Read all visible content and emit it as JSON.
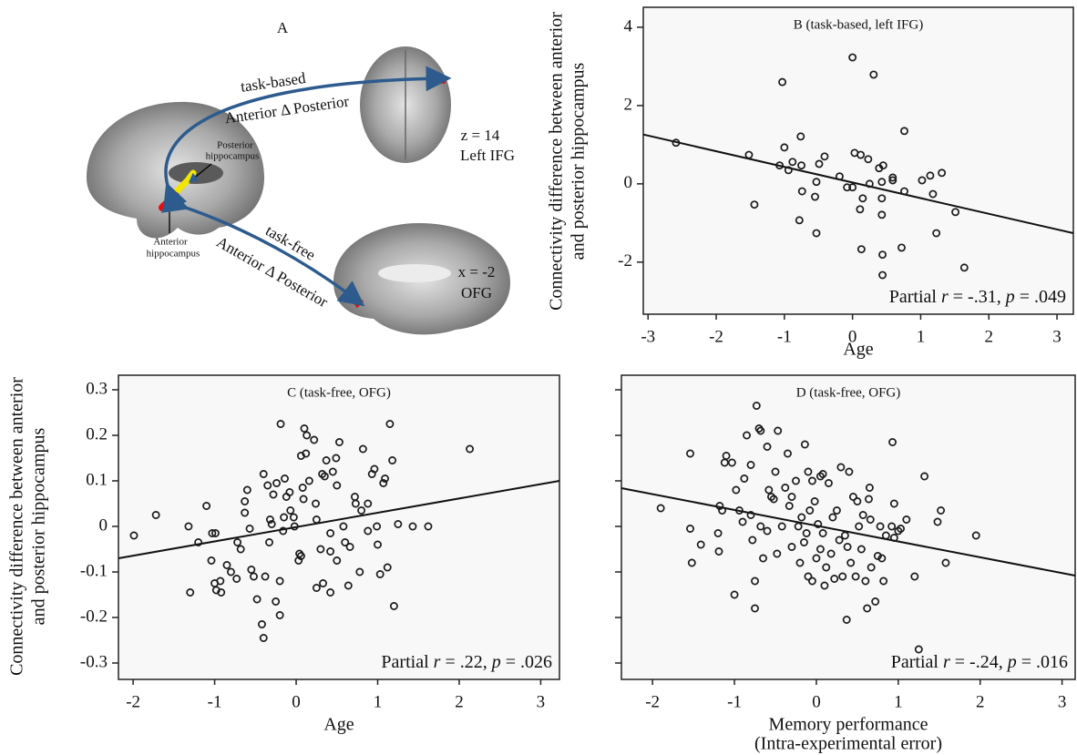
{
  "diagram": {
    "label": "A",
    "task_based": "task-based",
    "task_based_contrast": "Anterior Δ Posterior",
    "ifg_coord": "z = 14",
    "ifg_name": "Left IFG",
    "posterior_label": [
      "Posterior",
      "hippocampus"
    ],
    "anterior_label": [
      "Anterior",
      "hippocampus"
    ],
    "task_free": "task-free",
    "task_free_contrast": "Anterior Δ Posterior",
    "ofg_coord": "x = -2",
    "ofg_name": "OFG"
  },
  "chart_data": [
    {
      "type": "scatter",
      "title": "B (task-based, left IFG)",
      "xlabel": [
        "Age"
      ],
      "ylabel": [
        "Connectivity difference between anterior",
        "and posterior hippocampus"
      ],
      "color": "#1a1a1a",
      "x": [
        -2.59,
        -1.52,
        -1.44,
        -1.03,
        -1.0,
        -1.07,
        -0.94,
        -0.88,
        -0.76,
        -0.75,
        -0.74,
        -0.78,
        -0.53,
        -0.49,
        -0.55,
        -0.53,
        -0.41,
        -0.19,
        -0.08,
        0.0,
        0.0,
        0.31,
        0.03,
        0.12,
        0.23,
        0.15,
        0.11,
        0.13,
        0.39,
        0.25,
        0.43,
        0.43,
        0.43,
        0.44,
        0.44,
        0.45,
        0.59,
        0.59,
        0.72,
        0.76,
        0.76,
        1.02,
        1.14,
        1.18,
        1.31,
        1.23,
        1.51,
        1.64
      ],
      "values": [
        1.05,
        0.74,
        -0.53,
        2.6,
        0.93,
        0.47,
        0.35,
        0.56,
        1.21,
        0.47,
        -0.19,
        -0.93,
        0.05,
        0.51,
        -0.33,
        -1.26,
        0.7,
        0.19,
        -0.09,
        -0.09,
        3.23,
        2.79,
        0.79,
        0.74,
        0.63,
        -0.37,
        -0.65,
        -1.67,
        0.4,
        0.0,
        0.05,
        -0.37,
        -0.79,
        -1.81,
        -2.33,
        0.47,
        0.16,
        0.09,
        -1.63,
        1.35,
        -0.19,
        0.09,
        0.21,
        -0.26,
        0.28,
        -1.26,
        -0.72,
        -2.14
      ],
      "fit_line": {
        "x": [
          -3.07,
          3.24
        ],
        "y": [
          1.26,
          -1.26
        ]
      },
      "xlim": [
        -3.07,
        3.24
      ],
      "ylim": [
        -3.33,
        4.51
      ],
      "xticks": [
        -3,
        -2,
        -1,
        0,
        1,
        2,
        3
      ],
      "yticks": [
        -2,
        0,
        2,
        4
      ],
      "annotation": [
        {
          "text": "Partial "
        },
        {
          "text": "r",
          "italic": true
        },
        {
          "text": " = -.31, "
        },
        {
          "text": "p",
          "italic": true
        },
        {
          "text": " = .049"
        }
      ]
    },
    {
      "type": "scatter",
      "title": "C (task-free, OFG)",
      "xlabel": [
        "Age"
      ],
      "ylabel": [
        "Connectivity difference between anterior",
        "and posterior hippocampus"
      ],
      "color": "#1a1a1a",
      "x": [
        -1.99,
        -1.72,
        -1.32,
        -1.3,
        -1.2,
        -1.1,
        -1.03,
        -0.99,
        -1.04,
        -1.0,
        -0.98,
        -0.93,
        -0.92,
        -0.85,
        -0.8,
        -0.73,
        -0.72,
        -0.68,
        -0.63,
        -0.63,
        -0.6,
        -0.57,
        -0.55,
        -0.52,
        -0.48,
        -0.42,
        -0.4,
        -0.38,
        -0.4,
        -0.35,
        -0.33,
        -0.32,
        -0.3,
        -0.28,
        -0.24,
        -0.25,
        -0.2,
        -0.2,
        -0.16,
        -0.15,
        -0.19,
        -0.14,
        -0.12,
        -0.08,
        -0.07,
        -0.02,
        -0.03,
        0.03,
        0.04,
        0.06,
        0.06,
        0.08,
        0.09,
        0.12,
        0.1,
        0.13,
        0.16,
        0.22,
        0.24,
        0.25,
        0.25,
        0.3,
        0.32,
        0.33,
        0.35,
        0.37,
        0.42,
        0.42,
        0.42,
        0.45,
        0.49,
        0.5,
        0.5,
        0.53,
        0.58,
        0.6,
        0.64,
        0.66,
        0.73,
        0.78,
        0.8,
        0.88,
        0.93,
        0.96,
        0.99,
        1.03,
        1.07,
        1.09,
        1.12,
        1.15,
        1.18,
        1.2,
        1.25,
        1.43,
        1.62,
        2.13,
        0.82,
        0.72,
        0.88,
        1.0
      ],
      "values": [
        -0.02,
        0.025,
        0.0,
        -0.145,
        -0.035,
        0.045,
        -0.015,
        -0.015,
        -0.075,
        -0.125,
        -0.14,
        -0.12,
        -0.145,
        -0.085,
        -0.1,
        -0.115,
        -0.035,
        -0.05,
        0.03,
        0.055,
        0.08,
        -0.005,
        -0.095,
        -0.11,
        -0.16,
        -0.215,
        -0.245,
        -0.11,
        0.115,
        0.09,
        -0.035,
        0.015,
        0.005,
        0.07,
        0.095,
        -0.165,
        -0.195,
        -0.12,
        -0.01,
        0.02,
        0.225,
        0.105,
        0.065,
        0.075,
        0.035,
        0.0,
        0.02,
        -0.075,
        -0.06,
        -0.065,
        0.155,
        0.085,
        0.06,
        0.16,
        0.215,
        0.2,
        0.1,
        0.19,
        0.05,
        -0.135,
        0.015,
        -0.05,
        0.115,
        -0.125,
        0.11,
        0.145,
        -0.015,
        -0.055,
        -0.145,
        0.12,
        0.15,
        -0.075,
        0.09,
        0.185,
        0.0,
        -0.035,
        -0.13,
        -0.045,
        0.05,
        -0.1,
        0.035,
        0.05,
        0.115,
        0.126,
        0.0,
        -0.105,
        0.095,
        0.105,
        -0.09,
        0.225,
        0.145,
        -0.175,
        0.005,
        0.0,
        0.0,
        0.17,
        0.17,
        0.065,
        -0.01,
        -0.04
      ],
      "fit_line": {
        "x": [
          -2.18,
          3.23
        ],
        "y": [
          -0.07,
          0.1
        ]
      },
      "xlim": [
        -2.18,
        3.23
      ],
      "ylim": [
        -0.336,
        0.332
      ],
      "xticks": [
        -2,
        -1,
        0,
        1,
        2,
        3
      ],
      "yticks": [
        -0.3,
        -0.2,
        -0.1,
        0,
        0.1,
        0.2,
        0.3
      ],
      "annotation": [
        {
          "text": "Partial "
        },
        {
          "text": "r",
          "italic": true
        },
        {
          "text": " = .22, "
        },
        {
          "text": "p",
          "italic": true
        },
        {
          "text": " = .026"
        }
      ]
    },
    {
      "type": "scatter",
      "title": "D (task-free, OFG)",
      "xlabel": [
        "Memory performance",
        "(Intra-experimental error)"
      ],
      "color": "#1a1a1a",
      "ytick_labels": false,
      "x": [
        -1.9,
        -1.54,
        -1.54,
        -1.52,
        -1.41,
        -1.2,
        -1.18,
        -1.15,
        -1.19,
        -1.12,
        -1.1,
        -1.03,
        -1.0,
        -0.98,
        -0.94,
        -0.9,
        -0.88,
        -0.85,
        -0.8,
        -0.8,
        -0.78,
        -0.75,
        -0.75,
        -0.73,
        -0.7,
        -0.68,
        -0.68,
        -0.65,
        -0.6,
        -0.6,
        -0.58,
        -0.55,
        -0.52,
        -0.5,
        -0.48,
        -0.47,
        -0.42,
        -0.38,
        -0.35,
        -0.33,
        -0.3,
        -0.3,
        -0.25,
        -0.22,
        -0.2,
        -0.18,
        -0.15,
        -0.14,
        -0.12,
        -0.1,
        -0.1,
        -0.08,
        -0.05,
        -0.05,
        -0.02,
        0.0,
        0.02,
        0.05,
        0.05,
        0.08,
        0.08,
        0.1,
        0.12,
        0.15,
        0.18,
        0.2,
        0.22,
        0.25,
        0.28,
        0.3,
        0.32,
        0.35,
        0.37,
        0.38,
        0.4,
        0.42,
        0.45,
        0.48,
        0.5,
        0.52,
        0.55,
        0.57,
        0.6,
        0.62,
        0.64,
        0.65,
        0.66,
        0.67,
        0.72,
        0.75,
        0.78,
        0.8,
        0.82,
        0.85,
        0.92,
        0.93,
        0.95,
        0.95,
        1.0,
        1.03,
        1.1,
        1.2,
        1.25,
        1.32,
        1.48,
        1.52,
        1.58,
        1.95
      ],
      "values": [
        0.04,
        0.16,
        -0.005,
        -0.08,
        -0.04,
        -0.015,
        0.045,
        0.035,
        -0.055,
        0.14,
        0.155,
        0.14,
        -0.15,
        0.08,
        0.035,
        0.01,
        0.105,
        0.2,
        0.135,
        0.025,
        -0.03,
        -0.12,
        -0.18,
        0.265,
        0.215,
        0.21,
        0.0,
        -0.07,
        -0.01,
        0.175,
        0.08,
        0.065,
        0.06,
        0.12,
        -0.06,
        0.21,
        0.0,
        0.085,
        0.16,
        0.045,
        0.065,
        -0.045,
        0.1,
        0.0,
        -0.08,
        0.02,
        -0.035,
        0.18,
        -0.015,
        0.12,
        -0.11,
        0.035,
        -0.12,
        0.1,
        0.055,
        -0.07,
        0.005,
        0.11,
        -0.05,
        -0.015,
        0.115,
        -0.13,
        -0.09,
        0.095,
        -0.06,
        0.02,
        -0.115,
        0.035,
        -0.03,
        0.13,
        -0.11,
        -0.02,
        -0.205,
        -0.045,
        0.12,
        -0.08,
        0.065,
        -0.11,
        0.055,
        0.0,
        -0.05,
        0.025,
        -0.12,
        -0.18,
        0.06,
        0.085,
        0.015,
        -0.09,
        -0.165,
        -0.065,
        0.0,
        -0.07,
        -0.12,
        -0.02,
        0.0,
        0.185,
        -0.025,
        0.05,
        -0.01,
        -0.005,
        0.015,
        -0.11,
        -0.27,
        0.11,
        0.01,
        0.035,
        -0.08,
        -0.02
      ],
      "fit_line": {
        "x": [
          -2.38,
          3.16
        ],
        "y": [
          0.084,
          -0.108
        ]
      },
      "xlim": [
        -2.38,
        3.16
      ],
      "ylim": [
        -0.336,
        0.332
      ],
      "xticks": [
        -2,
        -1,
        0,
        1,
        2,
        3
      ],
      "yticks": [
        -0.3,
        -0.2,
        -0.1,
        0,
        0.1,
        0.2,
        0.3
      ],
      "annotation": [
        {
          "text": "Partial "
        },
        {
          "text": "r",
          "italic": true
        },
        {
          "text": " = -.24, "
        },
        {
          "text": "p",
          "italic": true
        },
        {
          "text": " = .016"
        }
      ]
    }
  ]
}
